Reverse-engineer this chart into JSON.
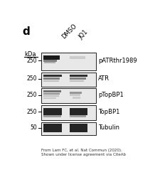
{
  "panel_label": "d",
  "col_labels": [
    "DMSO",
    "JQ1"
  ],
  "kda_label": "kDa",
  "blot_labels": [
    "pATRthr1989",
    "ATR",
    "pTopBP1",
    "TopBP1",
    "Tubulin"
  ],
  "kda_values": [
    "250",
    "250",
    "250",
    "250",
    "50"
  ],
  "citation": "From Lam FC, et al. Nat Commun (2020).\nShown under license agreement via CiteAb",
  "bg_color": "#ffffff",
  "blot_bg": "#e8e8e8",
  "band_color_dark": "#1a1a1a",
  "band_color_mid": "#555555",
  "band_color_light": "#999999",
  "fig_width": 2.26,
  "fig_height": 2.56,
  "dpi": 100
}
